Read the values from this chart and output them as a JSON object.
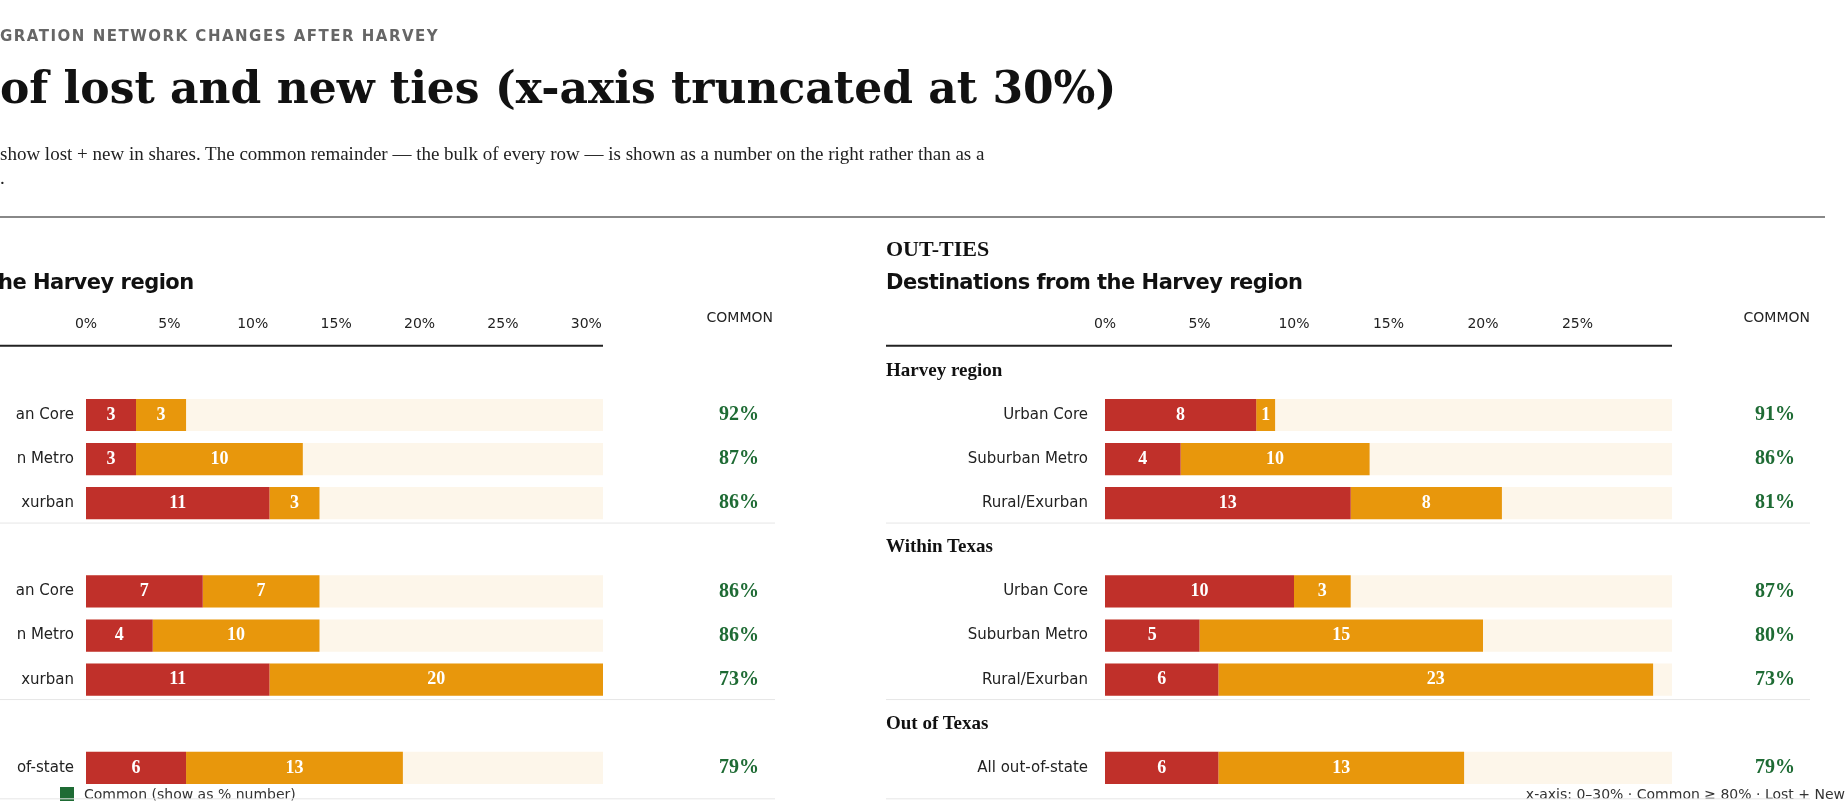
{
  "chart_data": [
    {
      "type": "bar",
      "orientation": "horizontal",
      "stacked": true,
      "data_labels": true,
      "grid": false,
      "legend": false,
      "title": "of lost and new ties (x-axis truncated at 30%)",
      "subtitle": "show lost + new in shares. The common remainder — the bulk of every row — is shown as a number on the right rather than as a\n.",
      "annotations": [
        "GRATION NETWORK CHANGES AFTER HARVEY",
        "he Harvey region",
        "Common (show as % number)"
      ],
      "categories": [
        null,
        "an Core",
        "n Metro",
        "xurban",
        null,
        "an Core",
        "n Metro",
        "xurban",
        null,
        "of-state"
      ],
      "y2label": "COMMON",
      "y2_categories": [
        null,
        "92%",
        "87%",
        "86%",
        null,
        "86%",
        "86%",
        "73%",
        null,
        "79%"
      ],
      "xlim": [
        0,
        31
      ],
      "xticks": [
        {
          "value": 0,
          "label": "0%"
        },
        {
          "value": 5,
          "label": "5%"
        },
        {
          "value": 10,
          "label": "10%"
        },
        {
          "value": 15,
          "label": "15%"
        },
        {
          "value": 20,
          "label": "20%"
        },
        {
          "value": 25,
          "label": "25%"
        },
        {
          "value": 30,
          "label": "30%"
        }
      ],
      "series": [
        {
          "color": "#c0302a",
          "values": [
            null,
            3,
            3,
            11,
            null,
            7,
            4,
            11,
            null,
            6
          ]
        },
        {
          "color": "#e8970c",
          "values": [
            null,
            3,
            10,
            3,
            null,
            7,
            10,
            20,
            null,
            13
          ]
        }
      ]
    },
    {
      "type": "bar",
      "orientation": "horizontal",
      "stacked": true,
      "data_labels": true,
      "grid": false,
      "legend": false,
      "title": "OUT-TIES",
      "subtitle": "Destinations from the Harvey region",
      "annotations": [
        "Harvey region",
        "Within Texas",
        "Out of Texas",
        "x-axis: 0–30% · Common ≥ 80% · Lost + New"
      ],
      "categories": [
        null,
        "Urban Core",
        "Suburban Metro",
        "Rural/Exurban",
        null,
        "Urban Core",
        "Suburban Metro",
        "Rural/Exurban",
        null,
        "All out-of-state"
      ],
      "y2label": "COMMON",
      "y2_categories": [
        null,
        "91%",
        "86%",
        "81%",
        null,
        "87%",
        "80%",
        "73%",
        null,
        "79%"
      ],
      "xlim": [
        0,
        30
      ],
      "xticks": [
        {
          "value": 0,
          "label": "0%"
        },
        {
          "value": 5,
          "label": "5%"
        },
        {
          "value": 10,
          "label": "10%"
        },
        {
          "value": 15,
          "label": "15%"
        },
        {
          "value": 20,
          "label": "20%"
        },
        {
          "value": 25,
          "label": "25%"
        }
      ],
      "series": [
        {
          "color": "#c0302a",
          "values": [
            null,
            8,
            4,
            13,
            null,
            10,
            5,
            6,
            null,
            6
          ]
        },
        {
          "color": "#e8970c",
          "values": [
            null,
            1,
            10,
            8,
            null,
            3,
            15,
            23,
            null,
            13
          ]
        }
      ]
    }
  ]
}
